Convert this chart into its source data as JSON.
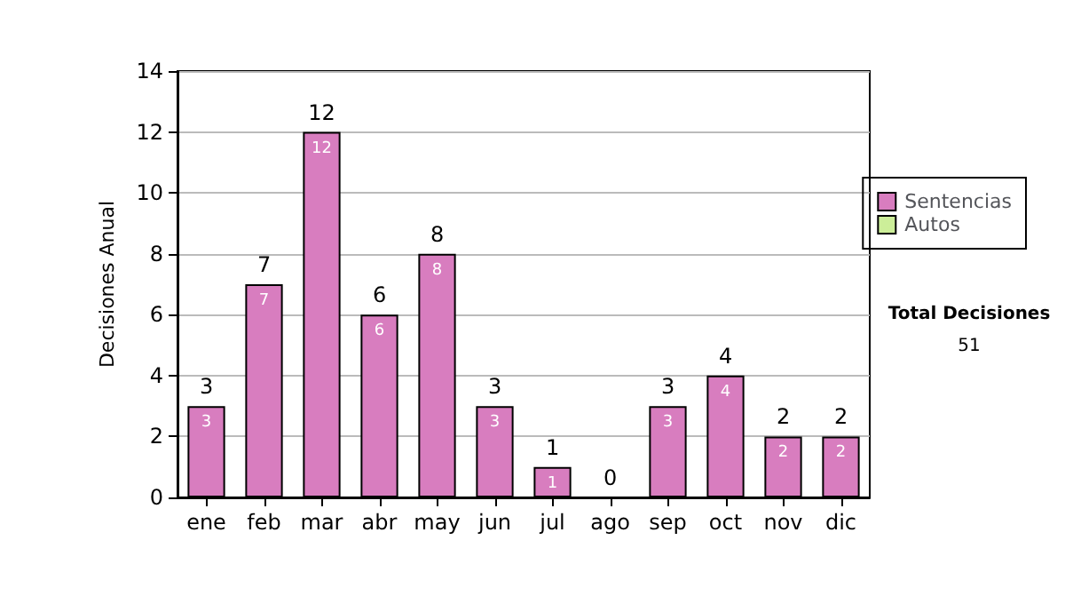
{
  "chart_data": {
    "type": "bar",
    "stacked": true,
    "ylabel": "Decisiones Anual",
    "categories": [
      "ene",
      "feb",
      "mar",
      "abr",
      "may",
      "jun",
      "jul",
      "ago",
      "sep",
      "oct",
      "nov",
      "dic"
    ],
    "series": [
      {
        "name": "Sentencias",
        "color": "#d87dbf",
        "values": [
          3,
          7,
          12,
          6,
          8,
          3,
          1,
          0,
          3,
          4,
          2,
          2
        ],
        "value_labels": [
          "3",
          "7",
          "12",
          "6",
          "8",
          "3",
          "1",
          null,
          "3",
          "4",
          "2",
          "2"
        ]
      },
      {
        "name": "Autos",
        "color": "#ccee99",
        "values": [
          0,
          0,
          0,
          0,
          0,
          0,
          0,
          0,
          0,
          0,
          0,
          0
        ]
      }
    ],
    "totals": [
      "3",
      "7",
      "12",
      "6",
      "8",
      "3",
      "1",
      "0",
      "3",
      "4",
      "2",
      "2"
    ],
    "ylim": [
      0,
      14
    ],
    "yticks": [
      0,
      2,
      4,
      6,
      8,
      10,
      12,
      14
    ],
    "grid": "y",
    "legend": "right",
    "annotations": [
      "Total Decisiones",
      "51"
    ]
  }
}
